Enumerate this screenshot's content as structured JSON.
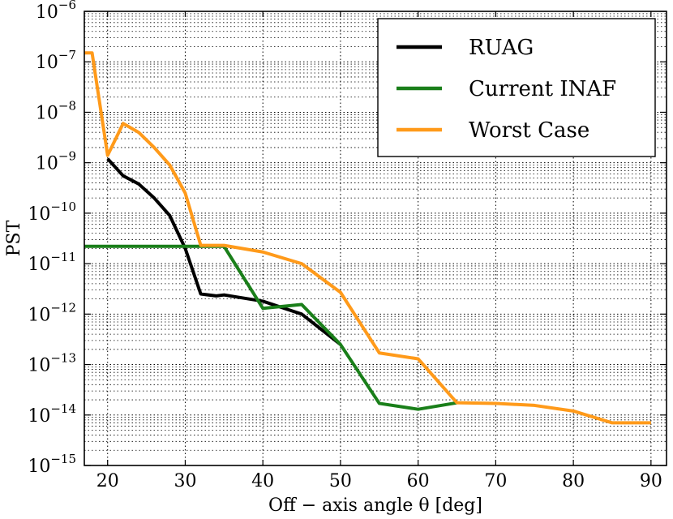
{
  "chart_data": {
    "type": "line",
    "title": "",
    "xlabel": "Off − axis angle θ [deg]",
    "ylabel": "PST",
    "xlim": [
      17,
      92
    ],
    "ylim_log10": [
      -15,
      -6
    ],
    "y_scale": "log",
    "grid": true,
    "legend_position": "top-right",
    "x_ticks": [
      20,
      30,
      40,
      50,
      60,
      70,
      80,
      90
    ],
    "y_tick_exponents": [
      -15,
      -14,
      -13,
      -12,
      -11,
      -10,
      -9,
      -8,
      -7,
      -6
    ],
    "y_tick_base": "10",
    "series": [
      {
        "name": "RUAG",
        "color": "#000000",
        "points": [
          [
            20,
            1.2e-09
          ],
          [
            22,
            5.5e-10
          ],
          [
            24,
            3.8e-10
          ],
          [
            26,
            2e-10
          ],
          [
            28,
            9e-11
          ],
          [
            30,
            2e-11
          ],
          [
            32,
            2.5e-12
          ],
          [
            34,
            2.3e-12
          ],
          [
            35,
            2.4e-12
          ],
          [
            40,
            1.8e-12
          ],
          [
            45,
            1e-12
          ],
          [
            50,
            2.5e-13
          ]
        ]
      },
      {
        "name": "Current INAF",
        "color": "#1a7f1a",
        "points": [
          [
            17,
            2.2e-11
          ],
          [
            20,
            2.2e-11
          ],
          [
            25,
            2.2e-11
          ],
          [
            30,
            2.2e-11
          ],
          [
            35,
            2.2e-11
          ],
          [
            40,
            1.3e-12
          ],
          [
            45,
            1.55e-12
          ],
          [
            50,
            2.5e-13
          ],
          [
            55,
            1.7e-14
          ],
          [
            60,
            1.3e-14
          ],
          [
            65,
            1.75e-14
          ]
        ]
      },
      {
        "name": "Worst Case",
        "color": "#ff9a1a",
        "points": [
          [
            17,
            1.5e-07
          ],
          [
            18,
            1.5e-07
          ],
          [
            20,
            1.4e-09
          ],
          [
            22,
            6e-09
          ],
          [
            24,
            4e-09
          ],
          [
            26,
            2e-09
          ],
          [
            28,
            9e-10
          ],
          [
            30,
            2.5e-10
          ],
          [
            32,
            2.3e-11
          ],
          [
            35,
            2.3e-11
          ],
          [
            40,
            1.7e-11
          ],
          [
            45,
            1e-11
          ],
          [
            50,
            2.7e-12
          ],
          [
            55,
            1.7e-13
          ],
          [
            60,
            1.3e-13
          ],
          [
            65,
            1.75e-14
          ],
          [
            70,
            1.7e-14
          ],
          [
            75,
            1.55e-14
          ],
          [
            80,
            1.2e-14
          ],
          [
            85,
            7e-15
          ],
          [
            90,
            7e-15
          ]
        ]
      }
    ]
  }
}
